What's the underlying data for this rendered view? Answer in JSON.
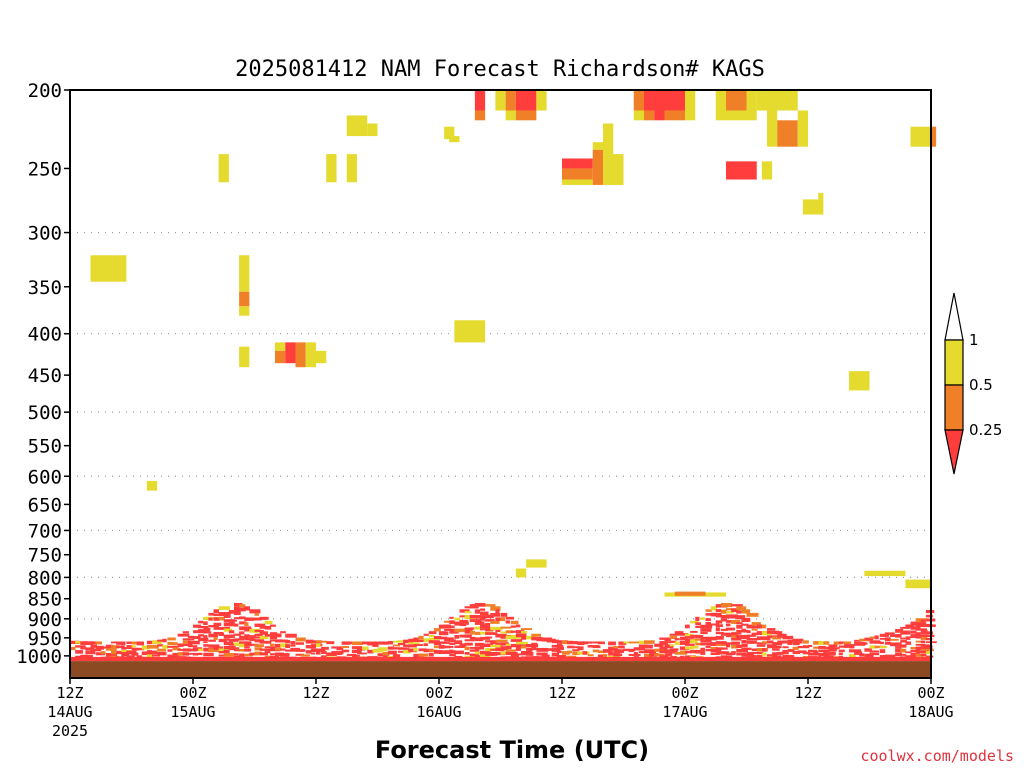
{
  "chart_data": {
    "type": "heatmap",
    "title": "2025081412 NAM Forecast Richardson# KAGS",
    "xlabel": "Forecast Time (UTC)",
    "ylabel": "",
    "credit": "coolwx.com/models",
    "x_unit": "forecast hour",
    "xlim": [
      0,
      84
    ],
    "ylim": [
      1000,
      200
    ],
    "y_scale": "log-pressure",
    "x_ticks": [
      {
        "hour": 0,
        "line1": "12Z",
        "line2": "14AUG",
        "line3": "2025"
      },
      {
        "hour": 12,
        "line1": "00Z",
        "line2": "15AUG",
        "line3": ""
      },
      {
        "hour": 24,
        "line1": "12Z",
        "line2": "",
        "line3": ""
      },
      {
        "hour": 36,
        "line1": "00Z",
        "line2": "16AUG",
        "line3": ""
      },
      {
        "hour": 48,
        "line1": "12Z",
        "line2": "",
        "line3": ""
      },
      {
        "hour": 60,
        "line1": "00Z",
        "line2": "17AUG",
        "line3": ""
      },
      {
        "hour": 72,
        "line1": "12Z",
        "line2": "",
        "line3": ""
      },
      {
        "hour": 84,
        "line1": "00Z",
        "line2": "18AUG",
        "line3": ""
      }
    ],
    "y_ticks": [
      200,
      250,
      300,
      350,
      400,
      450,
      500,
      550,
      600,
      650,
      700,
      750,
      800,
      850,
      900,
      950,
      1000
    ],
    "grid_dotted_levels": [
      300,
      400,
      500,
      600,
      700,
      800,
      900
    ],
    "legend": {
      "placement": "right",
      "bins": [
        {
          "label": "1",
          "color": "#ffffff"
        },
        {
          "label": "0.5",
          "color": "#e5da2e"
        },
        {
          "label": "0.25",
          "color": "#f08028"
        },
        {
          "label": "",
          "color": "#ff3d3d"
        }
      ]
    },
    "colors": {
      "ge_0.5": "#e5da2e",
      "0.25_0.5": "#f08028",
      "lt_0.25": "#ff3d3d",
      "ground": "#8b4a22"
    },
    "cells": [
      {
        "h0": 2,
        "h1": 5.5,
        "p0": 320,
        "p1": 345,
        "c": "Y"
      },
      {
        "h0": 14.5,
        "h1": 15.5,
        "p0": 240,
        "p1": 260,
        "c": "Y"
      },
      {
        "h0": 16.5,
        "h1": 17.5,
        "p0": 320,
        "p1": 355,
        "c": "Y"
      },
      {
        "h0": 16.5,
        "h1": 17.5,
        "p0": 355,
        "p1": 370,
        "c": "O"
      },
      {
        "h0": 16.5,
        "h1": 17.5,
        "p0": 370,
        "p1": 380,
        "c": "Y"
      },
      {
        "h0": 16.5,
        "h1": 17.5,
        "p0": 415,
        "p1": 440,
        "c": "Y"
      },
      {
        "h0": 20,
        "h1": 21,
        "p0": 410,
        "p1": 420,
        "c": "Y"
      },
      {
        "h0": 20,
        "h1": 21,
        "p0": 420,
        "p1": 435,
        "c": "O"
      },
      {
        "h0": 21,
        "h1": 22,
        "p0": 410,
        "p1": 435,
        "c": "R"
      },
      {
        "h0": 22,
        "h1": 23,
        "p0": 410,
        "p1": 440,
        "c": "O"
      },
      {
        "h0": 23,
        "h1": 24,
        "p0": 410,
        "p1": 440,
        "c": "Y"
      },
      {
        "h0": 24,
        "h1": 25,
        "p0": 420,
        "p1": 435,
        "c": "Y"
      },
      {
        "h0": 25,
        "h1": 26,
        "p0": 240,
        "p1": 260,
        "c": "Y"
      },
      {
        "h0": 27,
        "h1": 28,
        "p0": 240,
        "p1": 260,
        "c": "Y"
      },
      {
        "h0": 27,
        "h1": 29,
        "p0": 215,
        "p1": 228,
        "c": "Y"
      },
      {
        "h0": 29,
        "h1": 30,
        "p0": 220,
        "p1": 228,
        "c": "Y"
      },
      {
        "h0": 7.5,
        "h1": 8.5,
        "p0": 608,
        "p1": 625,
        "c": "Y"
      },
      {
        "h0": 36.5,
        "h1": 37.5,
        "p0": 222,
        "p1": 230,
        "c": "Y"
      },
      {
        "h0": 37,
        "h1": 38,
        "p0": 228,
        "p1": 232,
        "c": "Y"
      },
      {
        "h0": 37.5,
        "h1": 40.5,
        "p0": 385,
        "p1": 410,
        "c": "Y"
      },
      {
        "h0": 39.5,
        "h1": 40.5,
        "p0": 200,
        "p1": 212,
        "c": "R"
      },
      {
        "h0": 39.5,
        "h1": 40.5,
        "p0": 212,
        "p1": 218,
        "c": "O"
      },
      {
        "h0": 41.5,
        "h1": 42.5,
        "p0": 200,
        "p1": 212,
        "c": "Y"
      },
      {
        "h0": 42.5,
        "h1": 43.5,
        "p0": 200,
        "p1": 212,
        "c": "O"
      },
      {
        "h0": 42.5,
        "h1": 43.5,
        "p0": 212,
        "p1": 218,
        "c": "Y"
      },
      {
        "h0": 43.5,
        "h1": 45.5,
        "p0": 200,
        "p1": 212,
        "c": "R"
      },
      {
        "h0": 43.5,
        "h1": 45.5,
        "p0": 212,
        "p1": 218,
        "c": "O"
      },
      {
        "h0": 45.5,
        "h1": 46.5,
        "p0": 200,
        "p1": 212,
        "c": "Y"
      },
      {
        "h0": 48,
        "h1": 51,
        "p0": 243,
        "p1": 250,
        "c": "R"
      },
      {
        "h0": 48,
        "h1": 51,
        "p0": 250,
        "p1": 258,
        "c": "O"
      },
      {
        "h0": 48,
        "h1": 51,
        "p0": 258,
        "p1": 262,
        "c": "Y"
      },
      {
        "h0": 51,
        "h1": 52,
        "p0": 237,
        "p1": 262,
        "c": "O"
      },
      {
        "h0": 52,
        "h1": 54,
        "p0": 240,
        "p1": 262,
        "c": "Y"
      },
      {
        "h0": 52,
        "h1": 53,
        "p0": 220,
        "p1": 240,
        "c": "Y"
      },
      {
        "h0": 51,
        "h1": 52,
        "p0": 232,
        "p1": 237,
        "c": "Y"
      },
      {
        "h0": 55,
        "h1": 56,
        "p0": 200,
        "p1": 212,
        "c": "O"
      },
      {
        "h0": 55,
        "h1": 56,
        "p0": 212,
        "p1": 218,
        "c": "Y"
      },
      {
        "h0": 56,
        "h1": 60,
        "p0": 200,
        "p1": 212,
        "c": "R"
      },
      {
        "h0": 56,
        "h1": 57,
        "p0": 212,
        "p1": 218,
        "c": "O"
      },
      {
        "h0": 57,
        "h1": 58,
        "p0": 212,
        "p1": 218,
        "c": "R"
      },
      {
        "h0": 58,
        "h1": 60,
        "p0": 212,
        "p1": 218,
        "c": "O"
      },
      {
        "h0": 60,
        "h1": 61,
        "p0": 200,
        "p1": 218,
        "c": "Y"
      },
      {
        "h0": 63,
        "h1": 64,
        "p0": 200,
        "p1": 218,
        "c": "Y"
      },
      {
        "h0": 64,
        "h1": 66,
        "p0": 200,
        "p1": 212,
        "c": "O"
      },
      {
        "h0": 64,
        "h1": 66,
        "p0": 212,
        "p1": 218,
        "c": "Y"
      },
      {
        "h0": 66,
        "h1": 67,
        "p0": 200,
        "p1": 218,
        "c": "Y"
      },
      {
        "h0": 67,
        "h1": 71,
        "p0": 200,
        "p1": 212,
        "c": "Y"
      },
      {
        "h0": 68,
        "h1": 69,
        "p0": 212,
        "p1": 235,
        "c": "Y"
      },
      {
        "h0": 69,
        "h1": 71,
        "p0": 218,
        "p1": 235,
        "c": "O"
      },
      {
        "h0": 71,
        "h1": 72,
        "p0": 212,
        "p1": 235,
        "c": "Y"
      },
      {
        "h0": 64,
        "h1": 67,
        "p0": 245,
        "p1": 258,
        "c": "R"
      },
      {
        "h0": 67.5,
        "h1": 68.5,
        "p0": 245,
        "p1": 258,
        "c": "Y"
      },
      {
        "h0": 71.5,
        "h1": 73.5,
        "p0": 273,
        "p1": 285,
        "c": "Y"
      },
      {
        "h0": 73,
        "h1": 73.5,
        "p0": 268,
        "p1": 273,
        "c": "Y"
      },
      {
        "h0": 76,
        "h1": 78,
        "p0": 445,
        "p1": 470,
        "c": "Y"
      },
      {
        "h0": 82,
        "h1": 84,
        "p0": 222,
        "p1": 235,
        "c": "Y"
      },
      {
        "h0": 84,
        "h1": 84.5,
        "p0": 222,
        "p1": 235,
        "c": "O"
      },
      {
        "h0": 43.5,
        "h1": 44.5,
        "p0": 780,
        "p1": 800,
        "c": "Y"
      },
      {
        "h0": 44.5,
        "h1": 46.5,
        "p0": 760,
        "p1": 778,
        "c": "Y"
      },
      {
        "h0": 58,
        "h1": 64,
        "p0": 835,
        "p1": 845,
        "c": "Y"
      },
      {
        "h0": 59,
        "h1": 62,
        "p0": 833,
        "p1": 843,
        "c": "O"
      },
      {
        "h0": 77.5,
        "h1": 81.5,
        "p0": 785,
        "p1": 797,
        "c": "Y"
      },
      {
        "h0": 81.5,
        "h1": 84,
        "p0": 805,
        "p1": 825,
        "c": "Y"
      }
    ]
  }
}
